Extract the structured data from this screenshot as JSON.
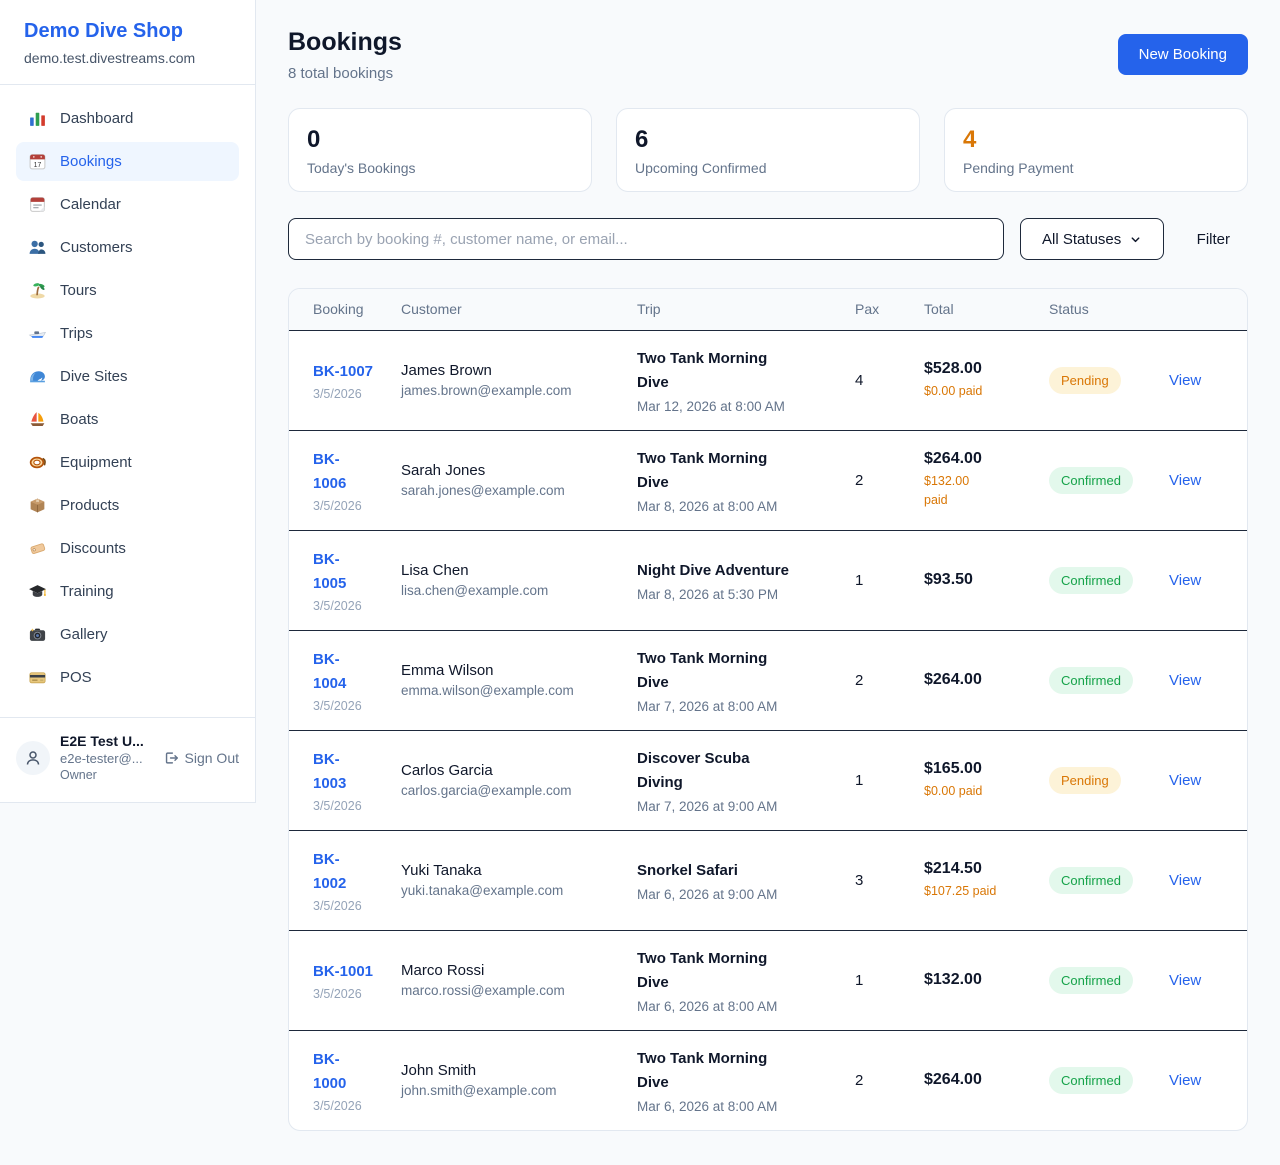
{
  "colors": {
    "accent": "#2563eb",
    "pending": "#d97706",
    "confirmed": "#16a34a",
    "dark_text": "#0f172a"
  },
  "sidebar": {
    "shop_name": "Demo Dive Shop",
    "shop_domain": "demo.test.divestreams.com",
    "items": [
      {
        "label": "Dashboard",
        "icon": "bar-chart",
        "active": false
      },
      {
        "label": "Bookings",
        "icon": "calendar",
        "active": true
      },
      {
        "label": "Calendar",
        "icon": "tear-calendar",
        "active": false
      },
      {
        "label": "Customers",
        "icon": "people",
        "active": false
      },
      {
        "label": "Tours",
        "icon": "island",
        "active": false
      },
      {
        "label": "Trips",
        "icon": "speedboat",
        "active": false
      },
      {
        "label": "Dive Sites",
        "icon": "wave",
        "active": false
      },
      {
        "label": "Boats",
        "icon": "sailboat",
        "active": false
      },
      {
        "label": "Equipment",
        "icon": "dive-mask",
        "active": false
      },
      {
        "label": "Products",
        "icon": "package",
        "active": false
      },
      {
        "label": "Discounts",
        "icon": "tag",
        "active": false
      },
      {
        "label": "Training",
        "icon": "grad-cap",
        "active": false
      },
      {
        "label": "Gallery",
        "icon": "camera",
        "active": false
      },
      {
        "label": "POS",
        "icon": "credit-card",
        "active": false
      }
    ],
    "user": {
      "name": "E2E Test U...",
      "email": "e2e-tester@...",
      "role": "Owner",
      "sign_out_label": "Sign Out"
    }
  },
  "header": {
    "title": "Bookings",
    "subtitle": "8 total bookings",
    "new_booking_label": "New Booking"
  },
  "stats": [
    {
      "value": "0",
      "label": "Today's Bookings",
      "color": "#0f172a"
    },
    {
      "value": "6",
      "label": "Upcoming Confirmed",
      "color": "#0f172a"
    },
    {
      "value": "4",
      "label": "Pending Payment",
      "color": "#d97706"
    }
  ],
  "filters": {
    "search_placeholder": "Search by booking #, customer name, or email...",
    "status_selected": "All Statuses",
    "filter_label": "Filter"
  },
  "table": {
    "columns": [
      "Booking",
      "Customer",
      "Trip",
      "Pax",
      "Total",
      "Status"
    ],
    "view_label": "View",
    "rows": [
      {
        "id": "BK-1007",
        "date": "3/5/2026",
        "customer": "James Brown",
        "email": "james.brown@example.com",
        "trip": "Two Tank Morning\nDive",
        "datetime": "Mar 12, 2026 at 8:00 AM",
        "pax": "4",
        "total": "$528.00",
        "paid": "$0.00 paid",
        "status": "Pending"
      },
      {
        "id": "BK-\n1006",
        "date": "3/5/2026",
        "customer": "Sarah Jones",
        "email": "sarah.jones@example.com",
        "trip": "Two Tank Morning\nDive",
        "datetime": "Mar 8, 2026 at 8:00 AM",
        "pax": "2",
        "total": "$264.00",
        "paid": "$132.00\npaid",
        "status": "Confirmed"
      },
      {
        "id": "BK-\n1005",
        "date": "3/5/2026",
        "customer": "Lisa Chen",
        "email": "lisa.chen@example.com",
        "trip": "Night Dive Adventure",
        "datetime": "Mar 8, 2026 at 5:30 PM",
        "pax": "1",
        "total": "$93.50",
        "paid": "",
        "status": "Confirmed"
      },
      {
        "id": "BK-\n1004",
        "date": "3/5/2026",
        "customer": "Emma Wilson",
        "email": "emma.wilson@example.com",
        "trip": "Two Tank Morning\nDive",
        "datetime": "Mar 7, 2026 at 8:00 AM",
        "pax": "2",
        "total": "$264.00",
        "paid": "",
        "status": "Confirmed"
      },
      {
        "id": "BK-\n1003",
        "date": "3/5/2026",
        "customer": "Carlos Garcia",
        "email": "carlos.garcia@example.com",
        "trip": "Discover Scuba\nDiving",
        "datetime": "Mar 7, 2026 at 9:00 AM",
        "pax": "1",
        "total": "$165.00",
        "paid": "$0.00 paid",
        "status": "Pending"
      },
      {
        "id": "BK-\n1002",
        "date": "3/5/2026",
        "customer": "Yuki Tanaka",
        "email": "yuki.tanaka@example.com",
        "trip": "Snorkel Safari",
        "datetime": "Mar 6, 2026 at 9:00 AM",
        "pax": "3",
        "total": "$214.50",
        "paid": "$107.25 paid",
        "status": "Confirmed"
      },
      {
        "id": "BK-1001",
        "date": "3/5/2026",
        "customer": "Marco Rossi",
        "email": "marco.rossi@example.com",
        "trip": "Two Tank Morning\nDive",
        "datetime": "Mar 6, 2026 at 8:00 AM",
        "pax": "1",
        "total": "$132.00",
        "paid": "",
        "status": "Confirmed"
      },
      {
        "id": "BK-\n1000",
        "date": "3/5/2026",
        "customer": "John Smith",
        "email": "john.smith@example.com",
        "trip": "Two Tank Morning\nDive",
        "datetime": "Mar 6, 2026 at 8:00 AM",
        "pax": "2",
        "total": "$264.00",
        "paid": "",
        "status": "Confirmed"
      }
    ]
  }
}
